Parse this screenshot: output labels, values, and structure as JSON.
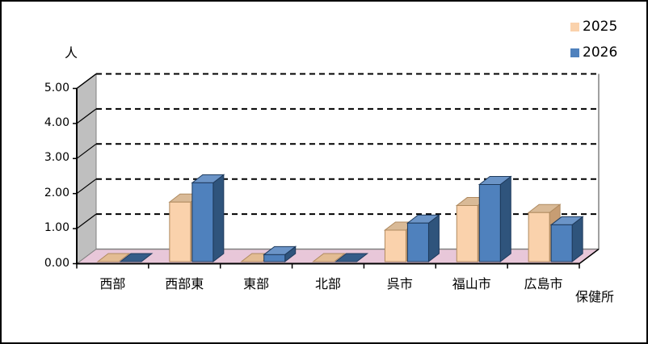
{
  "chart_data": {
    "type": "bar",
    "projection": "3d",
    "ylabel": "人",
    "xlabel": "保健所",
    "categories": [
      "西部",
      "西部東",
      "東部",
      "北部",
      "呉市",
      "福山市",
      "広島市"
    ],
    "series": [
      {
        "name": "2025",
        "values": [
          0.0,
          1.7,
          0.0,
          0.0,
          0.9,
          1.6,
          1.4
        ],
        "color_front": "#FAD2AC",
        "color_top": "#D9BA97",
        "color_side": "#C79D73",
        "color_flat": "#E3BC93",
        "color_outline": "#B08B60"
      },
      {
        "name": "2026",
        "values": [
          0.0,
          2.25,
          0.2,
          0.0,
          1.1,
          2.2,
          1.05
        ],
        "color_front": "#4F81BD",
        "color_top": "#6B94C7",
        "color_side": "#2F547C",
        "color_flat": "#355C88",
        "color_outline": "#1E3A5C"
      }
    ],
    "ylim": [
      0,
      5
    ],
    "y_tick_step": 1,
    "y_tick_labels": [
      "0.00",
      "1.00",
      "2.00",
      "3.00",
      "4.00",
      "5.00"
    ],
    "gridlines": "dashed",
    "legend_position": "top-right",
    "colors": {
      "wall_side": "#BFBFBF",
      "floor": "#E8C7D9",
      "background": "#FFFFFF",
      "grid": "#000000",
      "axis": "#000000",
      "wall_edge": "#808080",
      "border": "#000000"
    }
  }
}
